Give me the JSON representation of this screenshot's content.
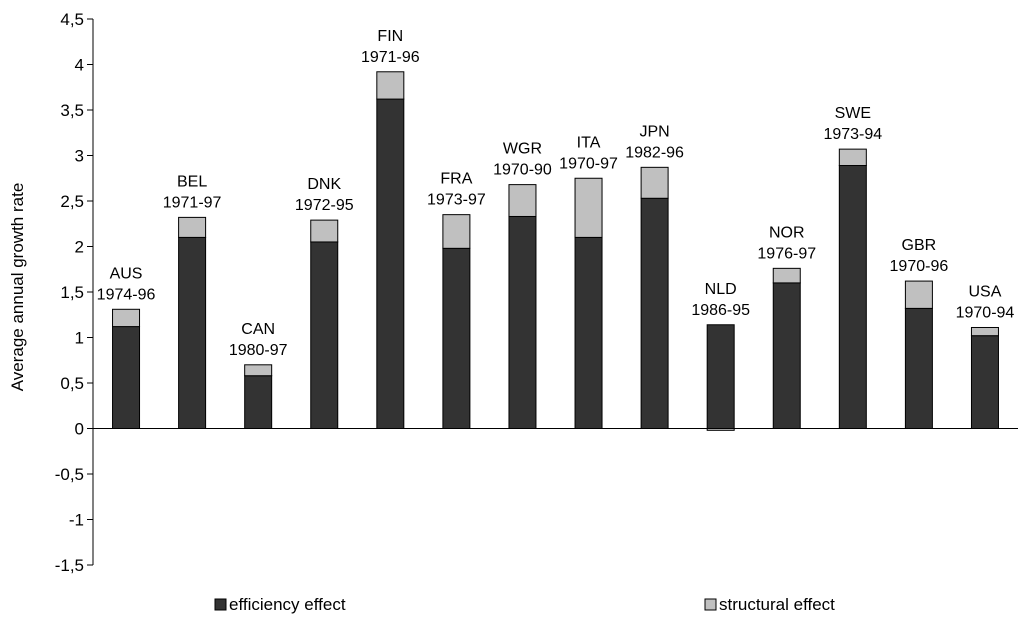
{
  "chart_data": {
    "type": "bar",
    "stacked": true,
    "ylabel": "Average annual growth rate",
    "xlabel": "",
    "ylim": [
      -1.5,
      4.5
    ],
    "y_ticks": [
      "-1,5",
      "-1",
      "-0,5",
      "0",
      "0,5",
      "1",
      "1,5",
      "2",
      "2,5",
      "3",
      "3,5",
      "4",
      "4,5"
    ],
    "categories": [
      "AUS",
      "BEL",
      "CAN",
      "DNK",
      "FIN",
      "FRA",
      "WGR",
      "ITA",
      "JPN",
      "NLD",
      "NOR",
      "SWE",
      "GBR",
      "USA"
    ],
    "periods": [
      "1974-96",
      "1971-97",
      "1980-97",
      "1972-95",
      "1971-96",
      "1973-97",
      "1970-90",
      "1970-97",
      "1982-96",
      "1986-95",
      "1976-97",
      "1973-94",
      "1970-96",
      "1970-94"
    ],
    "series": [
      {
        "name": "efficiency effect",
        "color": "#333333",
        "values": [
          1.12,
          2.1,
          0.58,
          2.05,
          3.62,
          1.98,
          2.33,
          2.1,
          2.53,
          1.14,
          1.6,
          2.89,
          1.32,
          1.02
        ]
      },
      {
        "name": "structural effect",
        "color": "#c0c0c0",
        "values": [
          0.19,
          0.22,
          0.12,
          0.24,
          0.3,
          0.37,
          0.35,
          0.65,
          0.34,
          -0.02,
          0.16,
          0.18,
          0.3,
          0.09
        ]
      }
    ],
    "grid": false,
    "legend": "bottom"
  }
}
